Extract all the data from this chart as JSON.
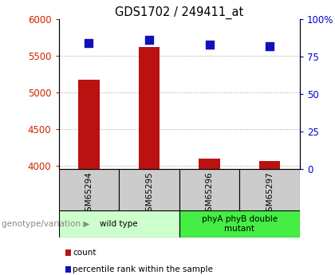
{
  "title": "GDS1702 / 249411_at",
  "samples": [
    "GSM65294",
    "GSM65295",
    "GSM65296",
    "GSM65297"
  ],
  "counts": [
    5175,
    5620,
    4090,
    4060
  ],
  "percentile_ranks": [
    84,
    86,
    83,
    82
  ],
  "ylim_left": [
    3950,
    6000
  ],
  "ylim_right": [
    0,
    100
  ],
  "yticks_left": [
    4000,
    4500,
    5000,
    5500,
    6000
  ],
  "yticks_right": [
    0,
    25,
    50,
    75,
    100
  ],
  "ytick_labels_right": [
    "0",
    "25",
    "50",
    "75",
    "100%"
  ],
  "bar_color": "#bb1111",
  "dot_color": "#1111bb",
  "groups": [
    {
      "label": "wild type",
      "samples": [
        0,
        1
      ],
      "color": "#ccffcc"
    },
    {
      "label": "phyA phyB double\nmutant",
      "samples": [
        2,
        3
      ],
      "color": "#44ee44"
    }
  ],
  "group_label": "genotype/variation",
  "legend_count_label": "count",
  "legend_pct_label": "percentile rank within the sample",
  "tick_label_color_left": "#cc2200",
  "tick_label_color_right": "#0000cc",
  "sample_box_color": "#cccccc",
  "bar_width": 0.35,
  "dot_size": 45,
  "grid_color": "#000000",
  "grid_alpha": 0.35,
  "grid_linestyle": ":"
}
